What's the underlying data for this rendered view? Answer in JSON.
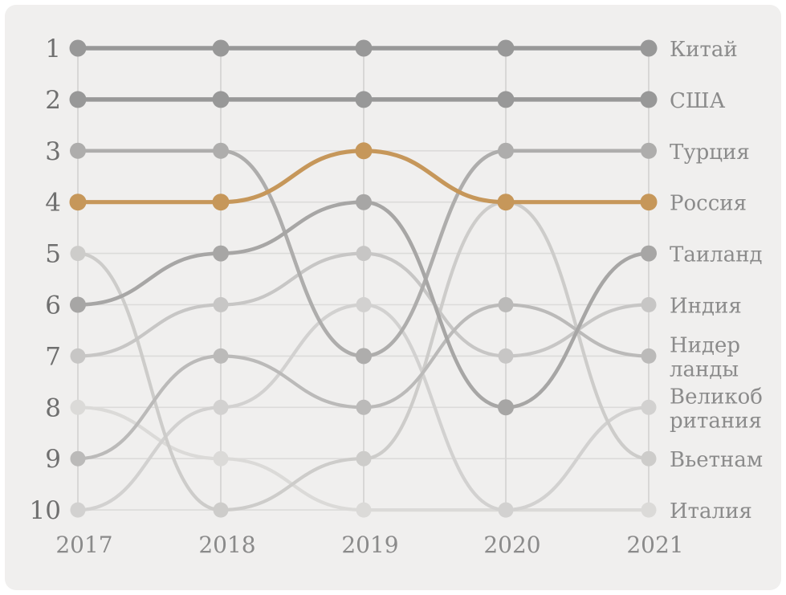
{
  "chart_data": {
    "type": "line",
    "subtype": "bump-rank-chart",
    "title": "",
    "xlabel": "",
    "ylabel": "",
    "x_categories": [
      "2017",
      "2018",
      "2019",
      "2020",
      "2021"
    ],
    "y_ticks": [
      "1",
      "2",
      "3",
      "4",
      "5",
      "6",
      "7",
      "8",
      "9",
      "10"
    ],
    "y_axis_meaning": "rank (1 = top)",
    "ylim": [
      1,
      10
    ],
    "grid": "on",
    "legend_position": "right-of-last-point",
    "highlight_color": "#c6975a",
    "grid_color": "#dcdbda",
    "background_color": "#f0efee",
    "series": [
      {
        "id": "china",
        "name": "Китай",
        "label_lines": [
          "Китай"
        ],
        "values": [
          1,
          1,
          1,
          1,
          1
        ],
        "color": "#989898",
        "width": 5.5,
        "dot_r": 10.5
      },
      {
        "id": "usa",
        "name": "США",
        "label_lines": [
          "США"
        ],
        "values": [
          2,
          2,
          2,
          2,
          2
        ],
        "color": "#989898",
        "width": 5.5,
        "dot_r": 10.5
      },
      {
        "id": "turkey",
        "name": "Турция",
        "label_lines": [
          "Турция"
        ],
        "values": [
          3,
          3,
          7,
          3,
          3
        ],
        "color": "#aeadac",
        "width": 4.6,
        "dot_r": 10
      },
      {
        "id": "russia",
        "name": "Россия",
        "label_lines": [
          "Россия"
        ],
        "values": [
          4,
          4,
          3,
          4,
          4
        ],
        "color": "#c6975a",
        "width": 5.2,
        "dot_r": 10.5
      },
      {
        "id": "thailand",
        "name": "Таиланд",
        "label_lines": [
          "Таиланд"
        ],
        "values": [
          6,
          5,
          4,
          8,
          5
        ],
        "color": "#a7a6a5",
        "width": 4.6,
        "dot_r": 10
      },
      {
        "id": "india",
        "name": "Индия",
        "label_lines": [
          "Индия"
        ],
        "values": [
          7,
          6,
          5,
          7,
          6
        ],
        "color": "#c7c6c5",
        "width": 4.2,
        "dot_r": 9.5
      },
      {
        "id": "netherlands",
        "name": "Нидерланды",
        "label_lines": [
          "Нидер",
          "ланды"
        ],
        "values": [
          9,
          7,
          8,
          6,
          7
        ],
        "color": "#bbbab9",
        "width": 4.2,
        "dot_r": 9.5
      },
      {
        "id": "uk",
        "name": "Великобритания",
        "label_lines": [
          "Великоб",
          "ритания"
        ],
        "values": [
          10,
          8,
          6,
          10,
          8
        ],
        "color": "#d2d1d0",
        "width": 4.2,
        "dot_r": 9.5
      },
      {
        "id": "vietnam",
        "name": "Вьетнам",
        "label_lines": [
          "Вьетнам"
        ],
        "values": [
          5,
          10,
          9,
          4,
          9
        ],
        "color": "#cdccca",
        "width": 4.2,
        "dot_r": 9.5
      },
      {
        "id": "italy",
        "name": "Италия",
        "label_lines": [
          "Италия"
        ],
        "values": [
          8,
          9,
          10,
          10,
          10
        ],
        "color": "#dbdad8",
        "width": 4.2,
        "dot_r": 9.5
      }
    ],
    "draw_order": [
      "italy",
      "uk",
      "vietnam",
      "india",
      "netherlands",
      "turkey",
      "thailand",
      "usa",
      "china",
      "russia"
    ],
    "notes": "Russia highlighted in orange; ranks 5 and 9 unoccupied in 2020 (ties at 4 and 10)"
  },
  "layout_text": {
    "years": [
      "2017",
      "2018",
      "2019",
      "2020",
      "2021"
    ],
    "rank_ticks": [
      "1",
      "2",
      "3",
      "4",
      "5",
      "6",
      "7",
      "8",
      "9",
      "10"
    ]
  }
}
